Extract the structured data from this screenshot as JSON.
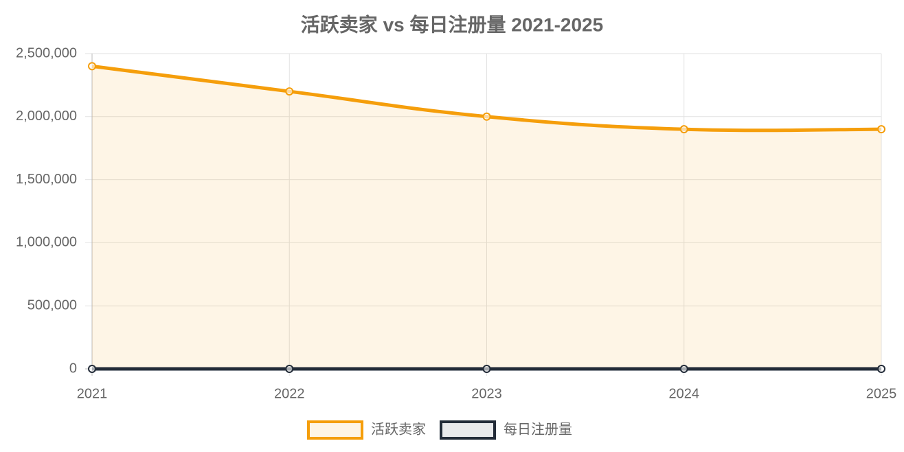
{
  "chart_data": {
    "type": "line",
    "title": "活跃卖家 vs 每日注册量 2021-2025",
    "categories": [
      "2021",
      "2022",
      "2023",
      "2024",
      "2025"
    ],
    "series": [
      {
        "name": "活跃卖家",
        "color": "#f59e0b",
        "fill": true,
        "values": [
          2400000,
          2200000,
          2000000,
          1900000,
          1900000
        ]
      },
      {
        "name": "每日注册量",
        "color": "#222b38",
        "fill": true,
        "values": [
          0,
          0,
          0,
          0,
          0
        ]
      }
    ],
    "ylim": [
      0,
      2500000
    ],
    "yticks": [
      0,
      {
        "value": 500000,
        "label": "500,000"
      },
      {
        "value": 1000000,
        "label": "1,000,000"
      },
      {
        "value": 1500000,
        "label": "1,500,000"
      },
      {
        "value": 2000000,
        "label": "2,000,000"
      },
      {
        "value": 2500000,
        "label": "2,500,000"
      }
    ],
    "grid": true,
    "smooth": true,
    "legend": "bottom"
  }
}
